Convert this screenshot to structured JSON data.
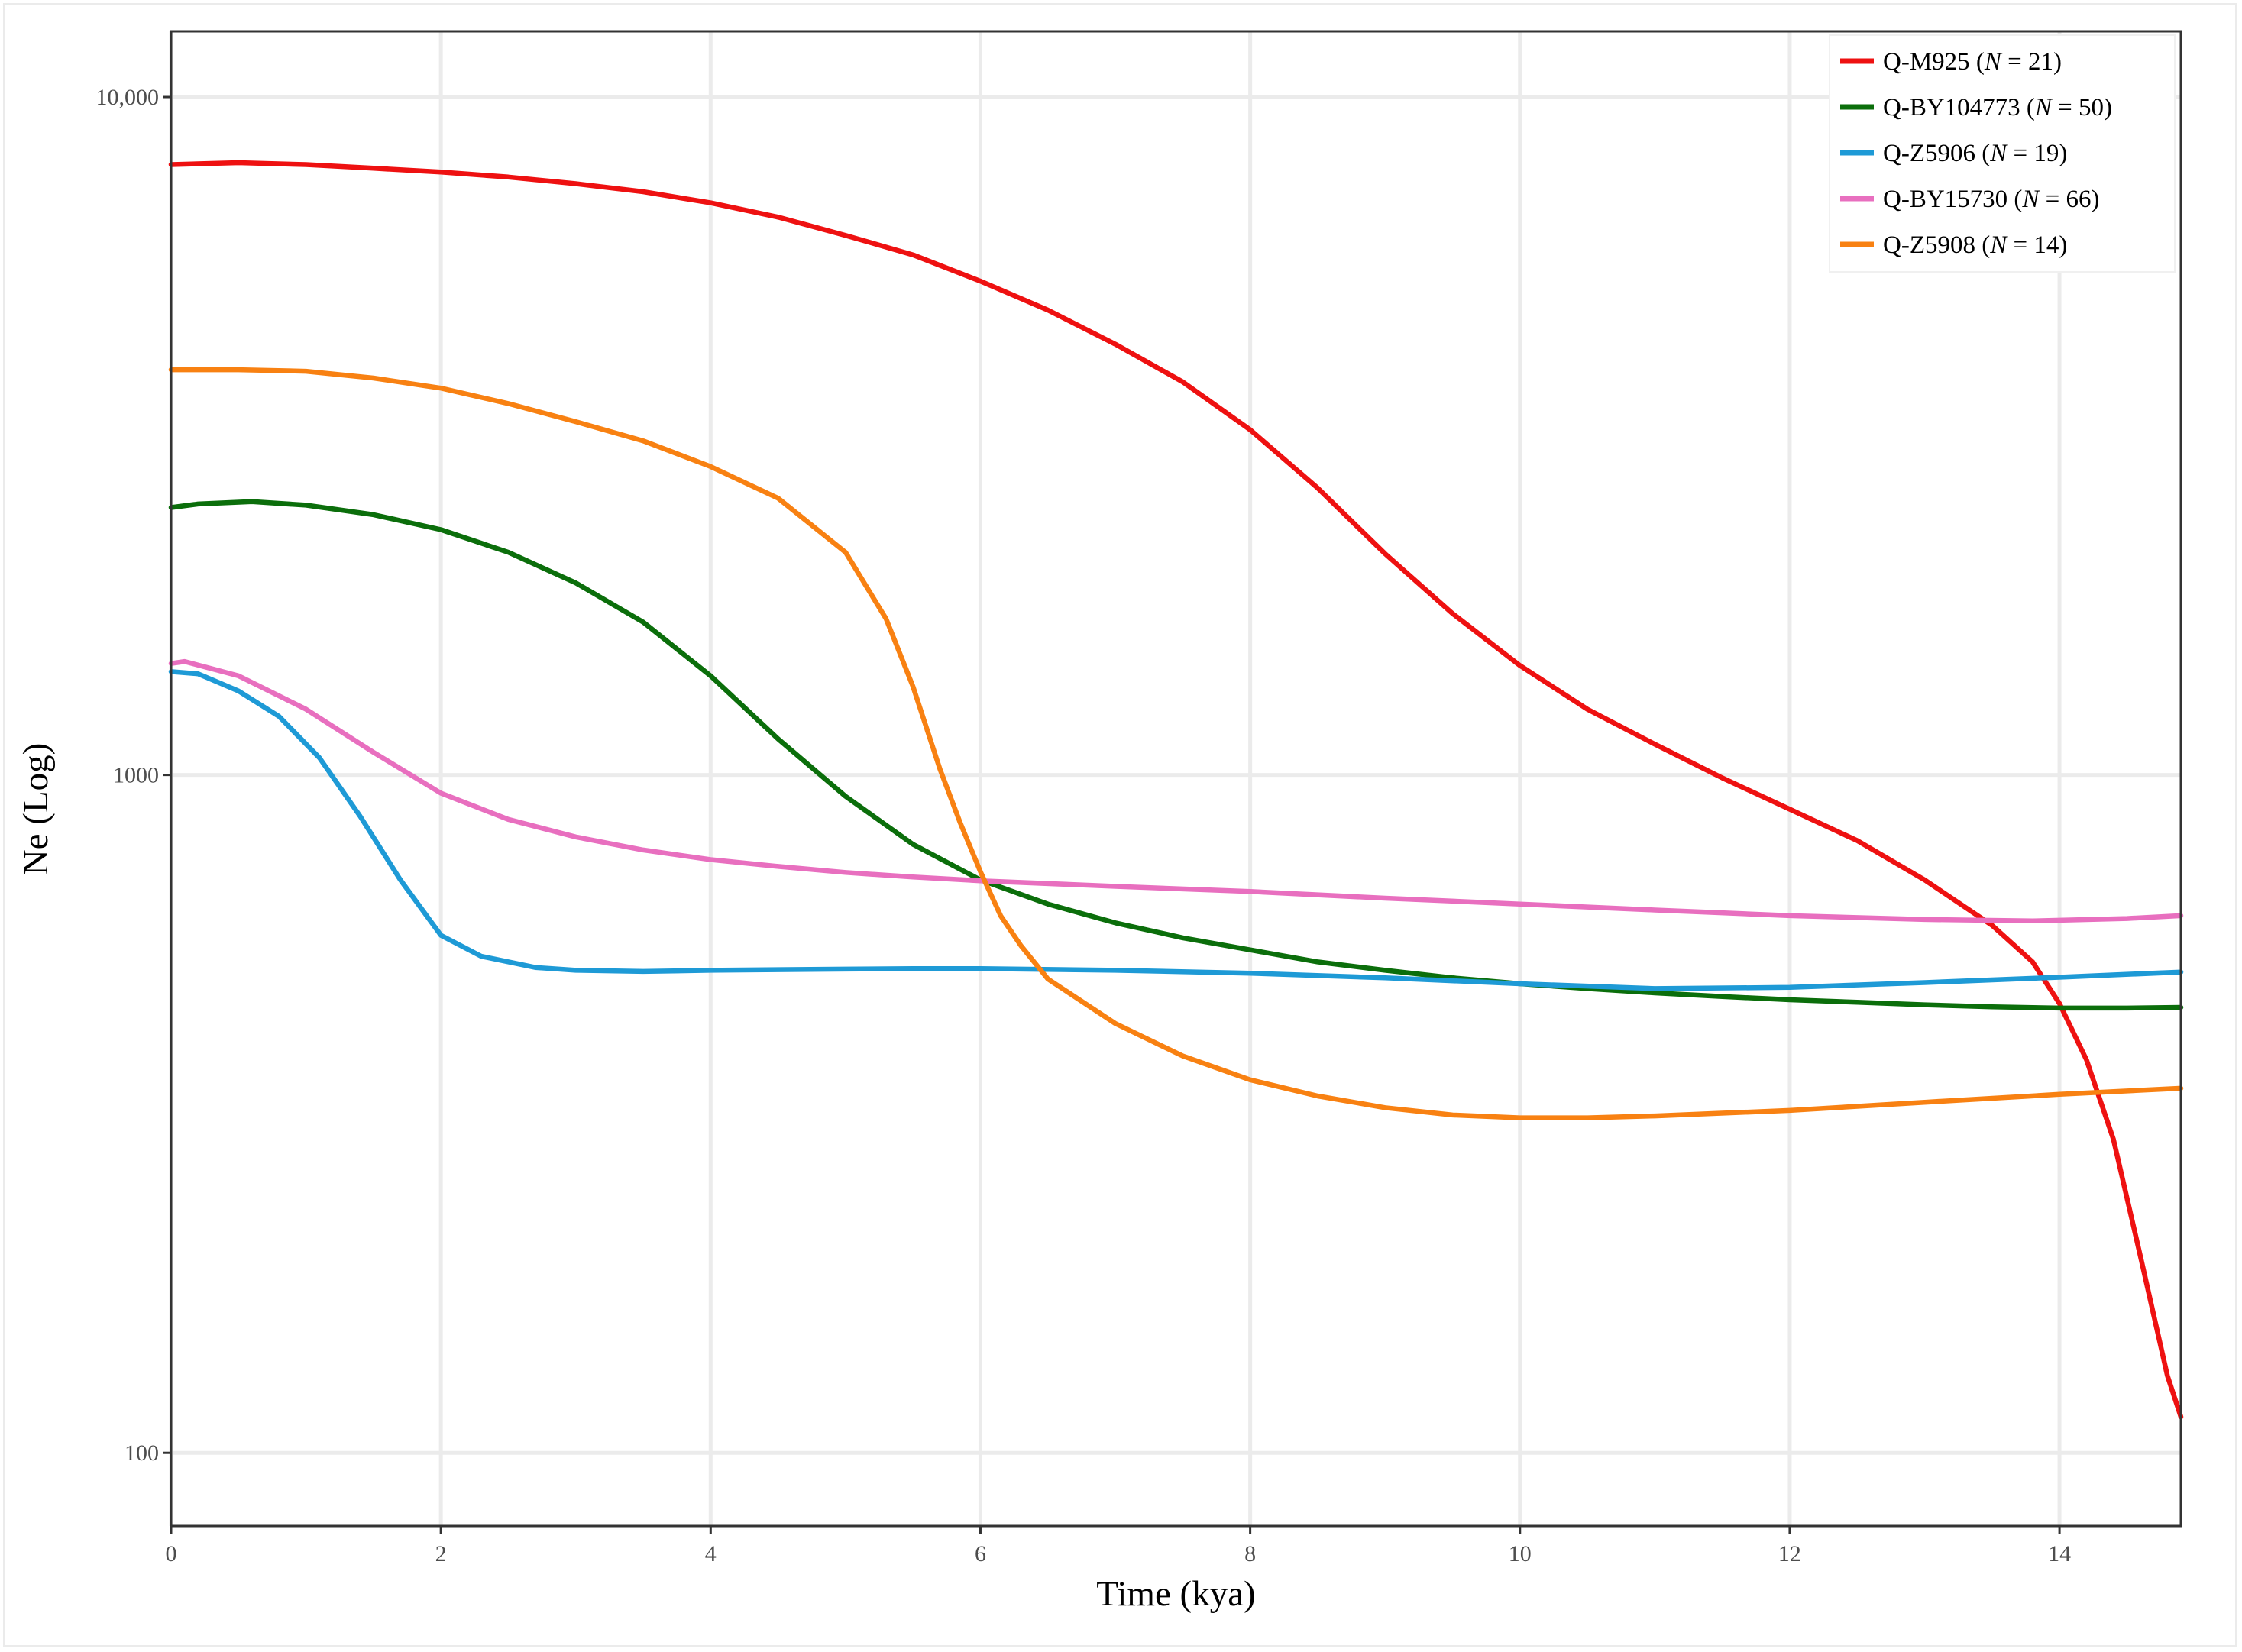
{
  "chart_data": {
    "type": "line",
    "title": "",
    "xlabel": "Time (kya)",
    "ylabel": "Ne (Log)",
    "x_scale": "linear",
    "y_scale": "log",
    "xlim": [
      0,
      14.9
    ],
    "ylim": [
      78,
      12500
    ],
    "x_ticks": [
      0,
      2,
      4,
      6,
      8,
      10,
      12,
      14
    ],
    "x_tick_labels": [
      "0",
      "2",
      "4",
      "6",
      "8",
      "10",
      "12",
      "14"
    ],
    "y_ticks": [
      100,
      1000,
      10000
    ],
    "y_tick_labels": [
      "100",
      "1000",
      "10,000"
    ],
    "grid": true,
    "legend_position": "top-right",
    "series": [
      {
        "name": "Q-M925 (N = 21)",
        "label_parts": [
          "Q-M925 (",
          "N",
          " = 21)"
        ],
        "color": "#ee1111",
        "points": [
          [
            0,
            7950
          ],
          [
            0.5,
            8000
          ],
          [
            1,
            7950
          ],
          [
            1.5,
            7850
          ],
          [
            2,
            7750
          ],
          [
            2.5,
            7620
          ],
          [
            3,
            7450
          ],
          [
            3.5,
            7250
          ],
          [
            4,
            6980
          ],
          [
            4.5,
            6650
          ],
          [
            5,
            6250
          ],
          [
            5.5,
            5850
          ],
          [
            6,
            5350
          ],
          [
            6.5,
            4850
          ],
          [
            7,
            4320
          ],
          [
            7.5,
            3800
          ],
          [
            8,
            3230
          ],
          [
            8.5,
            2650
          ],
          [
            9,
            2120
          ],
          [
            9.5,
            1730
          ],
          [
            10,
            1450
          ],
          [
            10.5,
            1250
          ],
          [
            11,
            1110
          ],
          [
            11.5,
            990
          ],
          [
            12,
            890
          ],
          [
            12.5,
            800
          ],
          [
            13,
            700
          ],
          [
            13.5,
            600
          ],
          [
            13.8,
            530
          ],
          [
            14,
            460
          ],
          [
            14.2,
            380
          ],
          [
            14.4,
            290
          ],
          [
            14.6,
            195
          ],
          [
            14.8,
            130
          ],
          [
            14.9,
            113
          ]
        ]
      },
      {
        "name": "Q-BY104773 (N = 50)",
        "label_parts": [
          "Q-BY104773 (",
          "N",
          " = 50)"
        ],
        "color": "#0b6e0b",
        "points": [
          [
            0,
            2480
          ],
          [
            0.2,
            2510
          ],
          [
            0.6,
            2530
          ],
          [
            1,
            2500
          ],
          [
            1.5,
            2420
          ],
          [
            2,
            2300
          ],
          [
            2.5,
            2130
          ],
          [
            3,
            1920
          ],
          [
            3.5,
            1680
          ],
          [
            4,
            1400
          ],
          [
            4.5,
            1130
          ],
          [
            5,
            930
          ],
          [
            5.5,
            790
          ],
          [
            6,
            700
          ],
          [
            6.5,
            645
          ],
          [
            7,
            605
          ],
          [
            7.5,
            575
          ],
          [
            8,
            552
          ],
          [
            8.5,
            530
          ],
          [
            9,
            515
          ],
          [
            9.5,
            502
          ],
          [
            10,
            492
          ],
          [
            10.5,
            484
          ],
          [
            11,
            477
          ],
          [
            11.5,
            471
          ],
          [
            12,
            466
          ],
          [
            12.5,
            462
          ],
          [
            13,
            458
          ],
          [
            13.5,
            455
          ],
          [
            14,
            453
          ],
          [
            14.5,
            453
          ],
          [
            14.9,
            454
          ]
        ]
      },
      {
        "name": "Q-Z5906 (N = 19)",
        "label_parts": [
          "Q-Z5906 (",
          "N",
          " = 19)"
        ],
        "color": "#1e9ad6",
        "points": [
          [
            0,
            1420
          ],
          [
            0.2,
            1410
          ],
          [
            0.5,
            1330
          ],
          [
            0.8,
            1220
          ],
          [
            1.1,
            1060
          ],
          [
            1.4,
            870
          ],
          [
            1.7,
            700
          ],
          [
            2,
            580
          ],
          [
            2.3,
            540
          ],
          [
            2.7,
            520
          ],
          [
            3,
            515
          ],
          [
            3.5,
            513
          ],
          [
            4,
            515
          ],
          [
            5,
            517
          ],
          [
            5.5,
            518
          ],
          [
            6,
            518
          ],
          [
            7,
            515
          ],
          [
            8,
            510
          ],
          [
            9,
            502
          ],
          [
            10,
            492
          ],
          [
            11,
            484
          ],
          [
            12,
            486
          ],
          [
            13,
            494
          ],
          [
            14,
            503
          ],
          [
            14.9,
            512
          ]
        ]
      },
      {
        "name": "Q-BY15730 (N = 66)",
        "label_parts": [
          "Q-BY15730 (",
          "N",
          " = 66)"
        ],
        "color": "#e86fbf",
        "points": [
          [
            0,
            1460
          ],
          [
            0.1,
            1470
          ],
          [
            0.5,
            1400
          ],
          [
            1,
            1250
          ],
          [
            1.5,
            1080
          ],
          [
            2,
            940
          ],
          [
            2.5,
            860
          ],
          [
            3,
            810
          ],
          [
            3.5,
            775
          ],
          [
            4,
            750
          ],
          [
            4.5,
            733
          ],
          [
            5,
            718
          ],
          [
            5.5,
            707
          ],
          [
            6,
            698
          ],
          [
            7,
            685
          ],
          [
            8,
            673
          ],
          [
            9,
            658
          ],
          [
            10,
            645
          ],
          [
            11,
            632
          ],
          [
            12,
            620
          ],
          [
            13,
            612
          ],
          [
            13.8,
            609
          ],
          [
            14.5,
            614
          ],
          [
            14.9,
            620
          ]
        ]
      },
      {
        "name": "Q-Z5908 (N = 14)",
        "label_parts": [
          "Q-Z5908 (",
          "N",
          " = 14)"
        ],
        "color": "#f88112",
        "points": [
          [
            0,
            3960
          ],
          [
            0.5,
            3960
          ],
          [
            1,
            3940
          ],
          [
            1.5,
            3850
          ],
          [
            2,
            3720
          ],
          [
            2.5,
            3530
          ],
          [
            3,
            3320
          ],
          [
            3.5,
            3110
          ],
          [
            4,
            2850
          ],
          [
            4.5,
            2560
          ],
          [
            5,
            2130
          ],
          [
            5.3,
            1700
          ],
          [
            5.5,
            1350
          ],
          [
            5.7,
            1020
          ],
          [
            5.85,
            850
          ],
          [
            6,
            720
          ],
          [
            6.15,
            620
          ],
          [
            6.3,
            560
          ],
          [
            6.5,
            500
          ],
          [
            7,
            430
          ],
          [
            7.5,
            385
          ],
          [
            8,
            355
          ],
          [
            8.5,
            336
          ],
          [
            9,
            323
          ],
          [
            9.5,
            315
          ],
          [
            10,
            312
          ],
          [
            10.5,
            312
          ],
          [
            11,
            314
          ],
          [
            12,
            320
          ],
          [
            13,
            329
          ],
          [
            14,
            338
          ],
          [
            14.9,
            345
          ]
        ]
      }
    ]
  }
}
